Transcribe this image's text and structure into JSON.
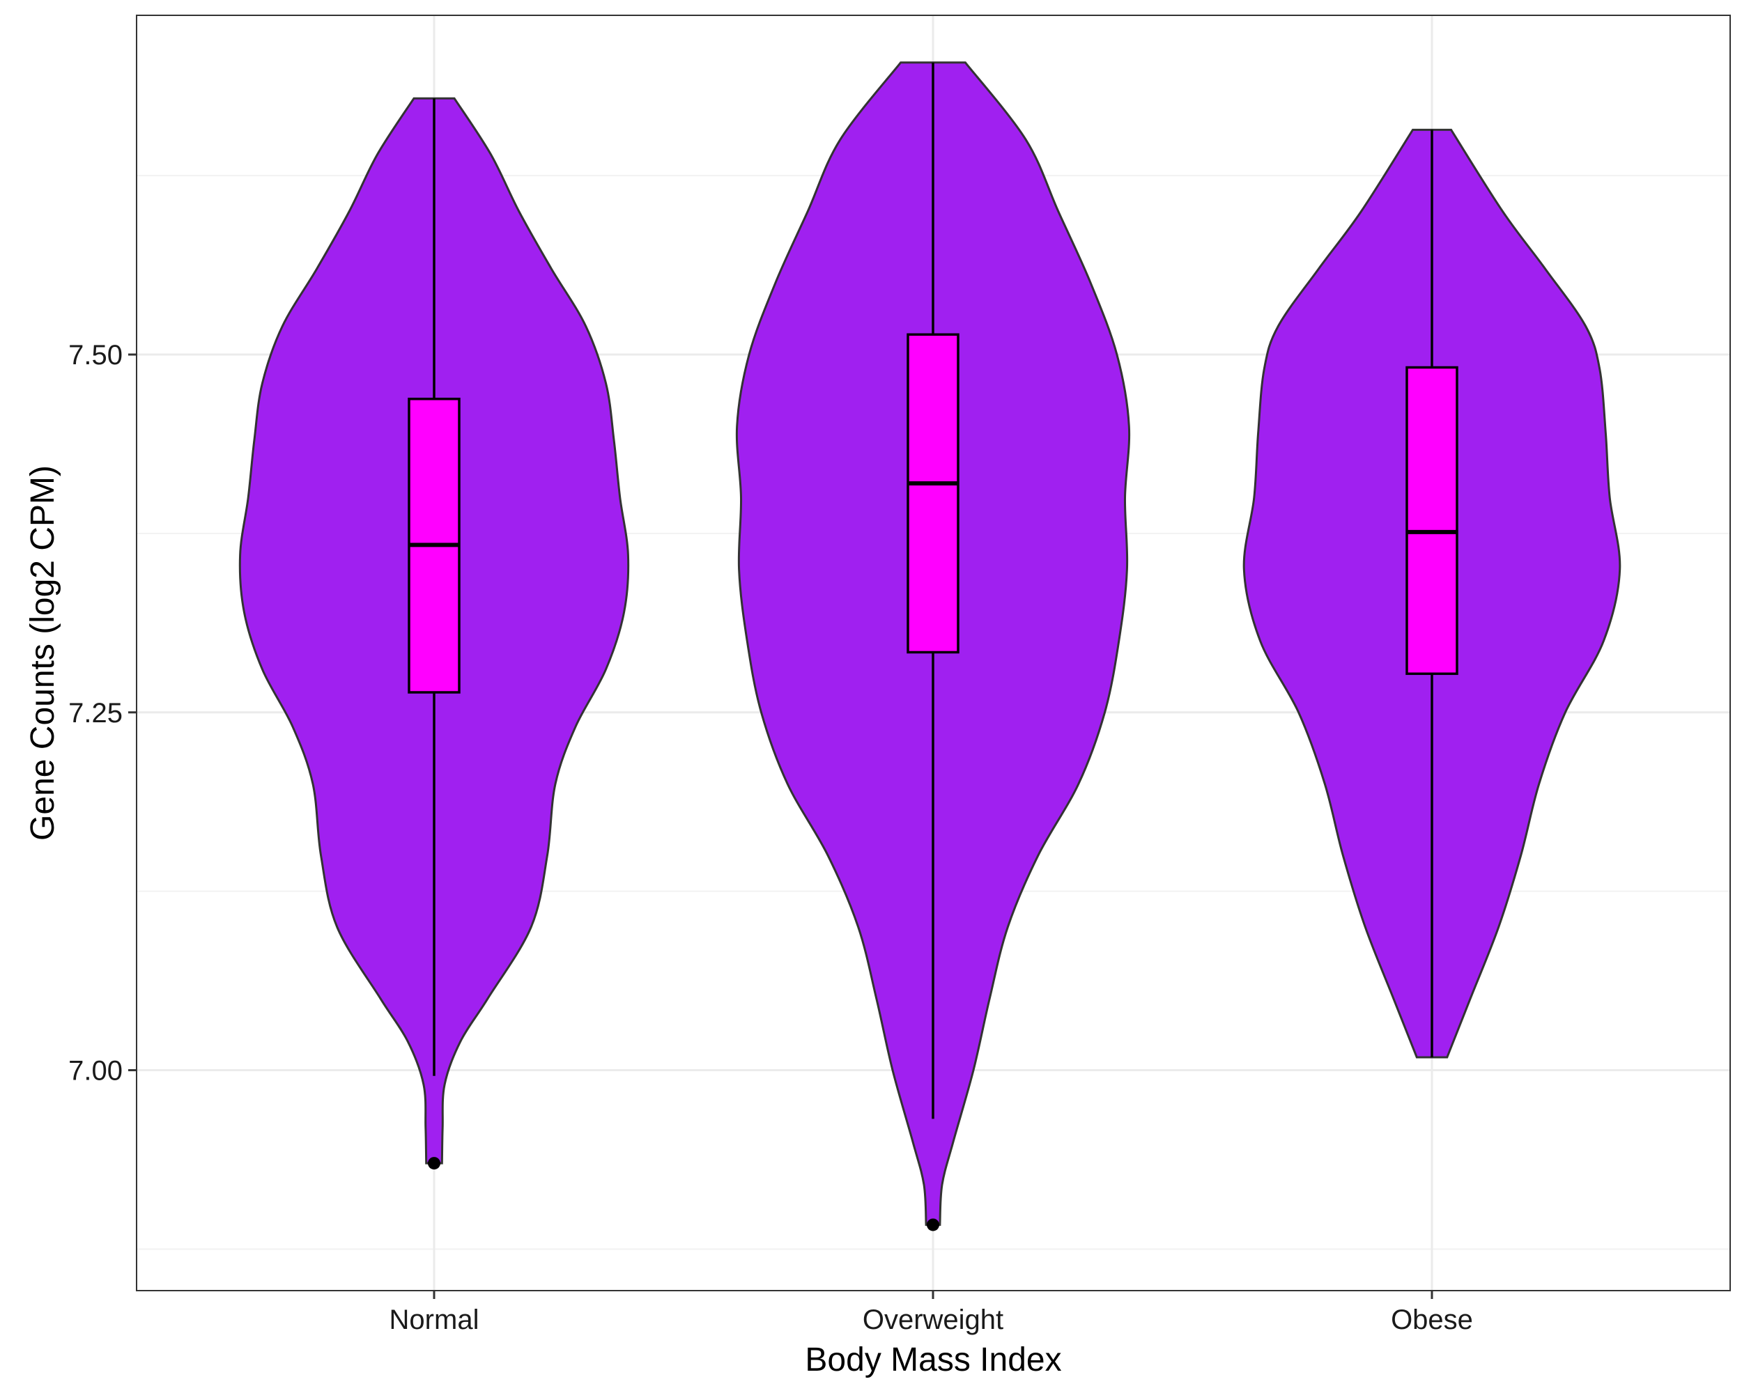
{
  "chart_data": {
    "type": "violin",
    "title": "",
    "xlabel": "Body Mass Index",
    "ylabel": "Gene Counts (log2 CPM)",
    "categories": [
      "Normal",
      "Overweight",
      "Obese"
    ],
    "ylim": [
      6.846,
      7.737
    ],
    "yticks": [
      7.0,
      7.25,
      7.5
    ],
    "ytick_labels": [
      "7.00",
      "7.25",
      "7.50"
    ],
    "grid": true,
    "legend": "none",
    "colors": {
      "violin_fill": "#A020F0",
      "violin_stroke": "#333333",
      "box_fill": "#FF00FF",
      "box_stroke": "#000000",
      "grid_major": "#EBEBEB",
      "grid_minor": "#F2F2F2",
      "panel_border": "#333333"
    },
    "series": [
      {
        "category": "Normal",
        "box": {
          "min": 6.996,
          "q1": 7.264,
          "median": 7.367,
          "q3": 7.469,
          "max": 7.679
        },
        "outliers": [
          6.935
        ],
        "density_profile": [
          [
            6.935,
            0.039
          ],
          [
            6.96,
            0.042
          ],
          [
            6.99,
            0.052
          ],
          [
            7.02,
            0.13
          ],
          [
            7.05,
            0.265
          ],
          [
            7.1,
            0.48
          ],
          [
            7.15,
            0.56
          ],
          [
            7.2,
            0.6
          ],
          [
            7.24,
            0.7
          ],
          [
            7.28,
            0.85
          ],
          [
            7.32,
            0.94
          ],
          [
            7.36,
            0.96
          ],
          [
            7.4,
            0.92
          ],
          [
            7.44,
            0.89
          ],
          [
            7.48,
            0.85
          ],
          [
            7.52,
            0.75
          ],
          [
            7.56,
            0.58
          ],
          [
            7.6,
            0.42
          ],
          [
            7.64,
            0.28
          ],
          [
            7.679,
            0.1
          ]
        ]
      },
      {
        "category": "Overweight",
        "box": {
          "min": 6.966,
          "q1": 7.292,
          "median": 7.41,
          "q3": 7.514,
          "max": 7.704
        },
        "outliers": [
          6.892
        ],
        "density_profile": [
          [
            6.892,
            0.034
          ],
          [
            6.92,
            0.045
          ],
          [
            6.95,
            0.1
          ],
          [
            7.0,
            0.2
          ],
          [
            7.05,
            0.28
          ],
          [
            7.1,
            0.37
          ],
          [
            7.15,
            0.52
          ],
          [
            7.2,
            0.72
          ],
          [
            7.25,
            0.85
          ],
          [
            7.3,
            0.92
          ],
          [
            7.35,
            0.96
          ],
          [
            7.4,
            0.95
          ],
          [
            7.45,
            0.97
          ],
          [
            7.5,
            0.91
          ],
          [
            7.55,
            0.78
          ],
          [
            7.6,
            0.62
          ],
          [
            7.65,
            0.46
          ],
          [
            7.704,
            0.16
          ]
        ]
      },
      {
        "category": "Obese",
        "box": {
          "min": 7.009,
          "q1": 7.277,
          "median": 7.376,
          "q3": 7.491,
          "max": 7.657
        },
        "outliers": [],
        "density_profile": [
          [
            7.009,
            0.075
          ],
          [
            7.05,
            0.19
          ],
          [
            7.1,
            0.33
          ],
          [
            7.15,
            0.44
          ],
          [
            7.2,
            0.53
          ],
          [
            7.25,
            0.66
          ],
          [
            7.3,
            0.85
          ],
          [
            7.35,
            0.93
          ],
          [
            7.4,
            0.88
          ],
          [
            7.445,
            0.86
          ],
          [
            7.49,
            0.83
          ],
          [
            7.52,
            0.76
          ],
          [
            7.56,
            0.56
          ],
          [
            7.6,
            0.35
          ],
          [
            7.657,
            0.095
          ]
        ]
      }
    ]
  }
}
